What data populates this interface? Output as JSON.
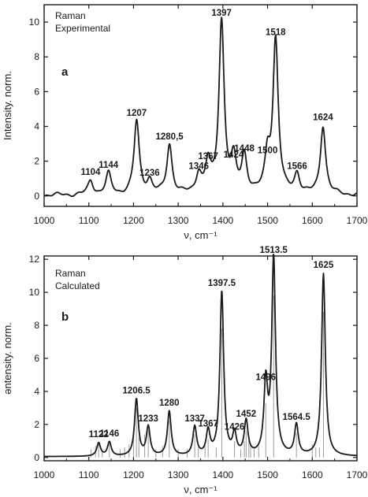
{
  "chart_data": [
    {
      "type": "line",
      "panel_letter": "a",
      "legend_lines": [
        "Raman",
        "Experimental"
      ],
      "xlabel": "ν, cm⁻¹",
      "ylabel": "Intensity. norm.",
      "xlim": [
        1000,
        1700
      ],
      "ylim": [
        -0.6,
        11
      ],
      "x_ticks": [
        1000,
        1100,
        1200,
        1300,
        1400,
        1500,
        1600,
        1700
      ],
      "y_ticks": [
        0,
        2,
        4,
        6,
        8,
        10
      ],
      "grid": false,
      "baseline": 0.05,
      "peaks": [
        {
          "label": "1104",
          "x": 1104,
          "y": 0.85
        },
        {
          "label": "1144",
          "x": 1144,
          "y": 1.25
        },
        {
          "label": "1207",
          "x": 1207,
          "y": 4.25
        },
        {
          "label": "1236",
          "x": 1236,
          "y": 0.8
        },
        {
          "label": "1280,5",
          "x": 1280.5,
          "y": 2.9
        },
        {
          "label": "1346",
          "x": 1346,
          "y": 1.2
        },
        {
          "label": "1367",
          "x": 1367,
          "y": 1.75
        },
        {
          "label": "1397",
          "x": 1397,
          "y": 10.0
        },
        {
          "label": "1424",
          "x": 1424,
          "y": 1.85
        },
        {
          "label": "1448",
          "x": 1448,
          "y": 2.2
        },
        {
          "label": "1500",
          "x": 1500,
          "y": 2.1
        },
        {
          "label": "1518",
          "x": 1518,
          "y": 8.9
        },
        {
          "label": "1566",
          "x": 1566,
          "y": 1.2
        },
        {
          "label": "1624",
          "x": 1624,
          "y": 4.0
        }
      ]
    },
    {
      "type": "line",
      "panel_letter": "b",
      "legend_lines": [
        "Raman",
        "Calculated"
      ],
      "xlabel": "ν, cm⁻¹",
      "ylabel": "ǝntensity. norm.",
      "xlim": [
        1000,
        1700
      ],
      "ylim": [
        -0.2,
        12.2
      ],
      "x_ticks": [
        1000,
        1100,
        1200,
        1300,
        1400,
        1500,
        1600,
        1700
      ],
      "y_ticks": [
        0,
        2,
        4,
        6,
        8,
        10,
        12
      ],
      "grid": false,
      "baseline": 0.05,
      "peaks": [
        {
          "label": "1122",
          "x": 1122,
          "y": 0.85
        },
        {
          "label": "1146",
          "x": 1146,
          "y": 0.9
        },
        {
          "label": "1206.5",
          "x": 1206.5,
          "y": 3.5
        },
        {
          "label": "1233",
          "x": 1233,
          "y": 1.8
        },
        {
          "label": "1280",
          "x": 1280,
          "y": 2.75
        },
        {
          "label": "1337",
          "x": 1337,
          "y": 1.8
        },
        {
          "label": "1367",
          "x": 1367,
          "y": 1.5
        },
        {
          "label": "1397.5",
          "x": 1397.5,
          "y": 10.0
        },
        {
          "label": "1426",
          "x": 1426,
          "y": 1.3
        },
        {
          "label": "1452",
          "x": 1452,
          "y": 2.1
        },
        {
          "label": "1496",
          "x": 1496,
          "y": 4.3
        },
        {
          "label": "1513.5",
          "x": 1513.5,
          "y": 12.0
        },
        {
          "label": "1564.5",
          "x": 1564.5,
          "y": 1.9
        },
        {
          "label": "1625",
          "x": 1625,
          "y": 11.1
        }
      ],
      "stick_lines": [
        {
          "x": 1105,
          "y": 0.5
        },
        {
          "x": 1115,
          "y": 0.7
        },
        {
          "x": 1122,
          "y": 0.8
        },
        {
          "x": 1130,
          "y": 0.4
        },
        {
          "x": 1146,
          "y": 0.8
        },
        {
          "x": 1170,
          "y": 0.5
        },
        {
          "x": 1180,
          "y": 0.6
        },
        {
          "x": 1190,
          "y": 0.8
        },
        {
          "x": 1200,
          "y": 1.6
        },
        {
          "x": 1206.5,
          "y": 3.0
        },
        {
          "x": 1212,
          "y": 1.2
        },
        {
          "x": 1225,
          "y": 1.4
        },
        {
          "x": 1233,
          "y": 1.6
        },
        {
          "x": 1250,
          "y": 0.5
        },
        {
          "x": 1265,
          "y": 0.7
        },
        {
          "x": 1280,
          "y": 2.2
        },
        {
          "x": 1300,
          "y": 0.5
        },
        {
          "x": 1320,
          "y": 0.5
        },
        {
          "x": 1337,
          "y": 1.4
        },
        {
          "x": 1345,
          "y": 0.6
        },
        {
          "x": 1360,
          "y": 0.8
        },
        {
          "x": 1367,
          "y": 1.1
        },
        {
          "x": 1385,
          "y": 0.6
        },
        {
          "x": 1397.5,
          "y": 7.8
        },
        {
          "x": 1426,
          "y": 1.0
        },
        {
          "x": 1440,
          "y": 0.5
        },
        {
          "x": 1448,
          "y": 1.0
        },
        {
          "x": 1452,
          "y": 1.6
        },
        {
          "x": 1458,
          "y": 1.0
        },
        {
          "x": 1462,
          "y": 0.8
        },
        {
          "x": 1470,
          "y": 0.6
        },
        {
          "x": 1480,
          "y": 0.7
        },
        {
          "x": 1496,
          "y": 3.3
        },
        {
          "x": 1513.5,
          "y": 9.8
        },
        {
          "x": 1564.5,
          "y": 1.5
        },
        {
          "x": 1600,
          "y": 0.8
        },
        {
          "x": 1608,
          "y": 0.6
        },
        {
          "x": 1616,
          "y": 0.6
        },
        {
          "x": 1625,
          "y": 8.8
        }
      ]
    }
  ]
}
